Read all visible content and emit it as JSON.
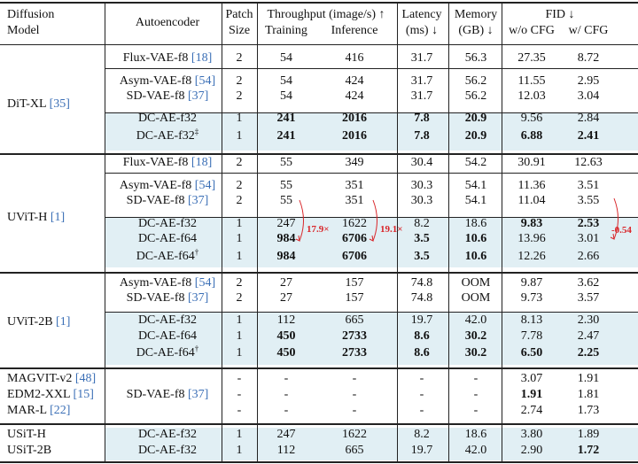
{
  "header": {
    "model": [
      "Diffusion",
      "Model"
    ],
    "autoencoder": "Autoencoder",
    "patch": [
      "Patch",
      "Size"
    ],
    "throughput": "Throughput (image/s) ↑",
    "training": "Training",
    "inference": "Inference",
    "latency": [
      "Latency",
      "(ms) ↓"
    ],
    "memory": [
      "Memory",
      "(GB) ↓"
    ],
    "fid": "FID ↓",
    "wo_cfg": "w/o CFG",
    "w_cfg": "w/ CFG"
  },
  "groups": [
    {
      "model": "DiT-XL",
      "ref": "[35]",
      "rows": [
        {
          "ae": "Flux-VAE-f8",
          "ref": "[18]",
          "patch": "2",
          "train": "54",
          "inf": "416",
          "lat": "31.7",
          "mem": "56.3",
          "fid1": "27.35",
          "fid2": "8.72"
        },
        {
          "ae": "Asym-VAE-f8",
          "ref": "[54]",
          "patch": "2",
          "train": "54",
          "inf": "424",
          "lat": "31.7",
          "mem": "56.2",
          "fid1": "11.55",
          "fid2": "2.95"
        },
        {
          "ae": "SD-VAE-f8",
          "ref": "[37]",
          "patch": "2",
          "train": "54",
          "inf": "424",
          "lat": "31.7",
          "mem": "56.2",
          "fid1": "12.03",
          "fid2": "3.04"
        },
        {
          "ae": "DC-AE-f32",
          "patch": "1",
          "train": "241",
          "inf": "2016",
          "lat": "7.8",
          "mem": "20.9",
          "fid1": "9.56",
          "fid2": "2.84"
        },
        {
          "ae": "DC-AE-f32",
          "sup": "‡",
          "patch": "1",
          "train": "241",
          "inf": "2016",
          "lat": "7.8",
          "mem": "20.9",
          "fid1": "6.88",
          "fid2": "2.41"
        }
      ]
    },
    {
      "model": "UViT-H",
      "ref": "[1]",
      "rows": [
        {
          "ae": "Flux-VAE-f8",
          "ref": "[18]",
          "patch": "2",
          "train": "55",
          "inf": "349",
          "lat": "30.4",
          "mem": "54.2",
          "fid1": "30.91",
          "fid2": "12.63"
        },
        {
          "ae": "Asym-VAE-f8",
          "ref": "[54]",
          "patch": "2",
          "train": "55",
          "inf": "351",
          "lat": "30.3",
          "mem": "54.1",
          "fid1": "11.36",
          "fid2": "3.51"
        },
        {
          "ae": "SD-VAE-f8",
          "ref": "[37]",
          "patch": "2",
          "train": "55",
          "inf": "351",
          "lat": "30.3",
          "mem": "54.1",
          "fid1": "11.04",
          "fid2": "3.55"
        },
        {
          "ae": "DC-AE-f32",
          "patch": "1",
          "train": "247",
          "inf": "1622",
          "lat": "8.2",
          "mem": "18.6",
          "fid1": "9.83",
          "fid2": "2.53"
        },
        {
          "ae": "DC-AE-f64",
          "patch": "1",
          "train": "984",
          "inf": "6706",
          "lat": "3.5",
          "mem": "10.6",
          "fid1": "13.96",
          "fid2": "3.01"
        },
        {
          "ae": "DC-AE-f64",
          "sup": "†",
          "patch": "1",
          "train": "984",
          "inf": "6706",
          "lat": "3.5",
          "mem": "10.6",
          "fid1": "12.26",
          "fid2": "2.66"
        }
      ]
    },
    {
      "model": "UViT-2B",
      "ref": "[1]",
      "rows": [
        {
          "ae": "Asym-VAE-f8",
          "ref": "[54]",
          "patch": "2",
          "train": "27",
          "inf": "157",
          "lat": "74.8",
          "mem": "OOM",
          "fid1": "9.87",
          "fid2": "3.62"
        },
        {
          "ae": "SD-VAE-f8",
          "ref": "[37]",
          "patch": "2",
          "train": "27",
          "inf": "157",
          "lat": "74.8",
          "mem": "OOM",
          "fid1": "9.73",
          "fid2": "3.57"
        },
        {
          "ae": "DC-AE-f32",
          "patch": "1",
          "train": "112",
          "inf": "665",
          "lat": "19.7",
          "mem": "42.0",
          "fid1": "8.13",
          "fid2": "2.30"
        },
        {
          "ae": "DC-AE-f64",
          "patch": "1",
          "train": "450",
          "inf": "2733",
          "lat": "8.6",
          "mem": "30.2",
          "fid1": "7.78",
          "fid2": "2.47"
        },
        {
          "ae": "DC-AE-f64",
          "sup": "†",
          "patch": "1",
          "train": "450",
          "inf": "2733",
          "lat": "8.6",
          "mem": "30.2",
          "fid1": "6.50",
          "fid2": "2.25"
        }
      ]
    },
    {
      "rows": [
        {
          "model": "MAGVIT-v2",
          "mref": "[48]",
          "ae": "",
          "patch": "-",
          "train": "-",
          "inf": "-",
          "lat": "-",
          "mem": "-",
          "fid1": "3.07",
          "fid2": "1.91"
        },
        {
          "model": "EDM2-XXL",
          "mref": "[15]",
          "ae": "SD-VAE-f8",
          "ref": "[37]",
          "patch": "-",
          "train": "-",
          "inf": "-",
          "lat": "-",
          "mem": "-",
          "fid1": "1.91",
          "fid2": "1.81"
        },
        {
          "model": "MAR-L",
          "mref": "[22]",
          "ae": "",
          "patch": "-",
          "train": "-",
          "inf": "-",
          "lat": "-",
          "mem": "-",
          "fid1": "2.74",
          "fid2": "1.73"
        }
      ]
    },
    {
      "rows": [
        {
          "model": "USiT-H",
          "ae": "DC-AE-f32",
          "patch": "1",
          "train": "247",
          "inf": "1622",
          "lat": "8.2",
          "mem": "18.6",
          "fid1": "3.80",
          "fid2": "1.89"
        },
        {
          "model": "USiT-2B",
          "ae": "DC-AE-f32",
          "patch": "1",
          "train": "112",
          "inf": "665",
          "lat": "19.7",
          "mem": "42.0",
          "fid1": "2.90",
          "fid2": "1.72"
        }
      ]
    }
  ],
  "annotations": {
    "throughput_train": "17.9×",
    "throughput_inf": "19.1×",
    "fid_delta": "-0.54"
  },
  "colors": {
    "highlight": "#e1eff4",
    "annotation": "#d9262a",
    "reference": "#3b6fb6"
  }
}
